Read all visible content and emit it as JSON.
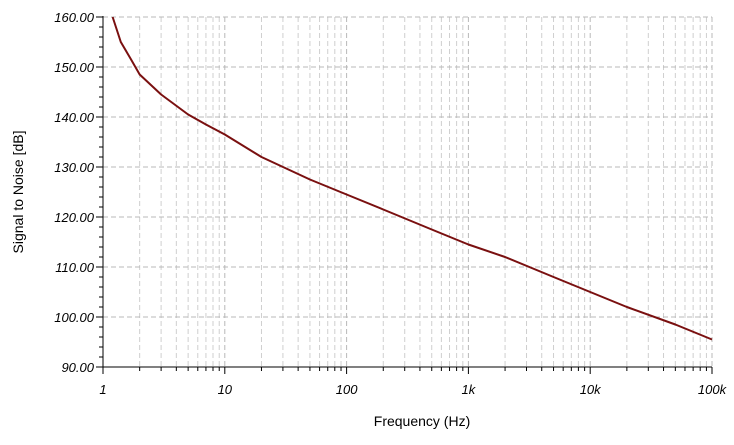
{
  "chart_data": {
    "type": "line",
    "xlabel": "Frequency (Hz)",
    "ylabel": "Signal to Noise [dB]",
    "xscale": "log",
    "xlim": [
      1,
      100000
    ],
    "ylim": [
      90,
      160
    ],
    "grid": true,
    "colors": {
      "line": "#7a1010",
      "grid_major": "#b8b8b8",
      "grid_minor": "#cfcfcf",
      "axis": "#000000"
    },
    "x_ticks": [
      {
        "value": 1,
        "label": "1"
      },
      {
        "value": 10,
        "label": "10"
      },
      {
        "value": 100,
        "label": "100"
      },
      {
        "value": 1000,
        "label": "1k"
      },
      {
        "value": 10000,
        "label": "10k"
      },
      {
        "value": 100000,
        "label": "100k"
      }
    ],
    "y_ticks": [
      {
        "value": 90,
        "label": "90.00"
      },
      {
        "value": 100,
        "label": "100.00"
      },
      {
        "value": 110,
        "label": "110.00"
      },
      {
        "value": 120,
        "label": "120.00"
      },
      {
        "value": 130,
        "label": "130.00"
      },
      {
        "value": 140,
        "label": "140.00"
      },
      {
        "value": 150,
        "label": "150.00"
      },
      {
        "value": 160,
        "label": "160.00"
      }
    ],
    "series": [
      {
        "x": [
          1.2,
          1.4,
          1.7,
          2,
          3,
          5,
          7,
          10,
          20,
          50,
          100,
          200,
          500,
          1000,
          2000,
          5000,
          10000,
          20000,
          50000,
          100000
        ],
        "y": [
          160,
          155,
          151.5,
          148.5,
          144.5,
          140.5,
          138.5,
          136.5,
          132,
          127.5,
          124.5,
          121.5,
          117.5,
          114.5,
          112,
          108,
          105,
          102,
          98.5,
          95.5
        ]
      }
    ]
  }
}
